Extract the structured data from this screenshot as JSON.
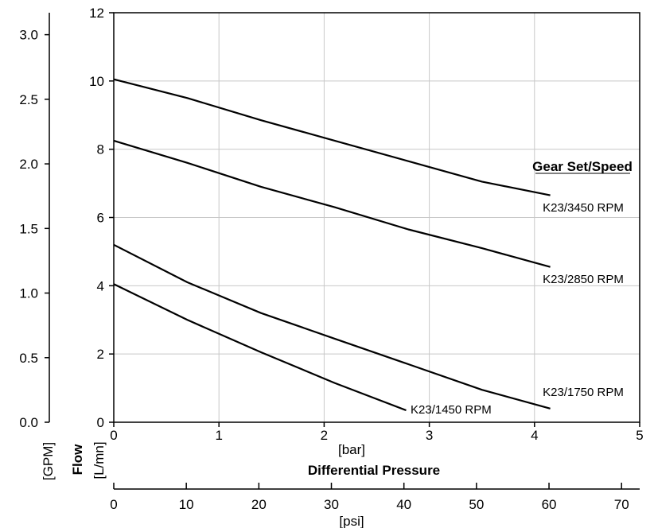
{
  "chart_data": {
    "type": "line",
    "title": "",
    "legend_title": "Gear Set/Speed",
    "xlabel_top": "[bar]",
    "xlabel_mid": "Differential Pressure",
    "xlabel_bottom": "[psi]",
    "ylabel_left": "[GPM]",
    "ylabel_flow": "Flow",
    "ylabel_right": "[L/mn]",
    "grid": true,
    "x_bar": {
      "lim": [
        0,
        5
      ],
      "ticks": [
        "0",
        "1",
        "2",
        "3",
        "4",
        "5"
      ]
    },
    "x_psi": {
      "lim": [
        0,
        72.5
      ],
      "ticks": [
        "0",
        "10",
        "20",
        "30",
        "40",
        "50",
        "60",
        "70"
      ]
    },
    "y_lmin": {
      "lim": [
        0,
        12
      ],
      "ticks": [
        "0",
        "2",
        "4",
        "6",
        "8",
        "10",
        "12"
      ]
    },
    "y_gpm": {
      "lim": [
        0,
        3.17
      ],
      "ticks": [
        "0.0",
        "0.5",
        "1.0",
        "1.5",
        "2.0",
        "2.5",
        "3.0"
      ]
    },
    "series": [
      {
        "name": "K23/3450 RPM",
        "x": [
          0,
          0.7,
          1.4,
          2.1,
          2.8,
          3.5,
          4.15
        ],
        "y": [
          10.05,
          9.5,
          8.85,
          8.25,
          7.65,
          7.05,
          6.65
        ]
      },
      {
        "name": "K23/2850 RPM",
        "x": [
          0,
          0.7,
          1.4,
          2.1,
          2.8,
          3.5,
          4.15
        ],
        "y": [
          8.25,
          7.6,
          6.9,
          6.3,
          5.65,
          5.1,
          4.55
        ]
      },
      {
        "name": "K23/1750 RPM",
        "x": [
          0,
          0.7,
          1.4,
          2.1,
          2.8,
          3.5,
          4.15
        ],
        "y": [
          5.2,
          4.1,
          3.2,
          2.45,
          1.7,
          0.95,
          0.4
        ]
      },
      {
        "name": "K23/1450 RPM",
        "x": [
          0,
          0.7,
          1.4,
          2.1,
          2.78
        ],
        "y": [
          4.05,
          3.0,
          2.05,
          1.15,
          0.35
        ]
      }
    ]
  }
}
